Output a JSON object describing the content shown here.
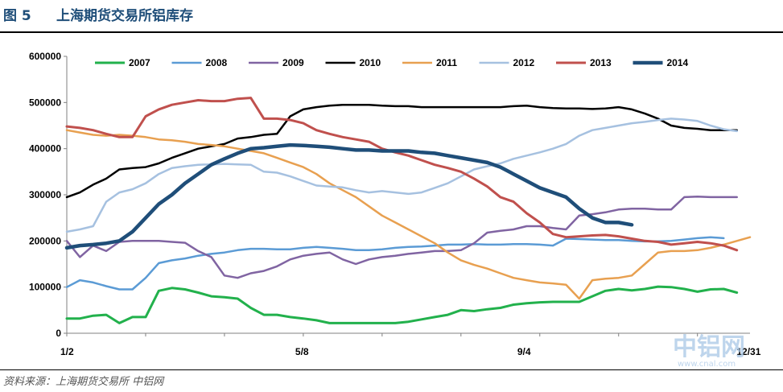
{
  "figure": {
    "label": "图 5",
    "title": "上海期货交易所铝库存",
    "source": "资料来源：上海期货交易所    中铝网"
  },
  "watermark": {
    "main": "中铝网",
    "sub": "www.cnal.com"
  },
  "chart_data": {
    "type": "line",
    "title": "",
    "xlabel": "",
    "ylabel": "",
    "ylim": [
      0,
      600000
    ],
    "yticks": [
      0,
      100000,
      200000,
      300000,
      400000,
      500000,
      600000
    ],
    "xticks": [
      {
        "label": "1/2",
        "week": 0
      },
      {
        "label": "5/8",
        "week": 17.9
      },
      {
        "label": "9/4",
        "week": 34.8
      },
      {
        "label": "12/31",
        "week": 51.9
      }
    ],
    "xlim": [
      0,
      52
    ],
    "grid": false,
    "legend_position": "top",
    "series": [
      {
        "name": "2007",
        "color": "#22b14c",
        "width": 3,
        "values": [
          32000,
          32000,
          38000,
          40000,
          22000,
          35000,
          35000,
          92000,
          98000,
          95000,
          88000,
          80000,
          78000,
          75000,
          55000,
          40000,
          40000,
          35000,
          32000,
          28000,
          22000,
          22000,
          22000,
          22000,
          22000,
          22000,
          25000,
          30000,
          35000,
          40000,
          50000,
          48000,
          52000,
          55000,
          62000,
          65000,
          67000,
          68000,
          68000,
          68000,
          80000,
          92000,
          96000,
          93000,
          96000,
          101000,
          100000,
          96000,
          90000,
          95000,
          96000,
          88000
        ]
      },
      {
        "name": "2008",
        "color": "#5b9bd5",
        "width": 2.5,
        "values": [
          100000,
          115000,
          110000,
          102000,
          95000,
          95000,
          120000,
          152000,
          158000,
          162000,
          168000,
          172000,
          175000,
          180000,
          183000,
          183000,
          182000,
          182000,
          185000,
          187000,
          185000,
          183000,
          180000,
          180000,
          182000,
          185000,
          187000,
          188000,
          190000,
          192000,
          192000,
          193000,
          192000,
          192000,
          193000,
          193000,
          192000,
          190000,
          205000,
          204000,
          203000,
          202000,
          202000,
          200000,
          199000,
          199000,
          200000,
          203000,
          206000,
          208000,
          206000
        ]
      },
      {
        "name": "2009",
        "color": "#8064a2",
        "width": 2.5,
        "values": [
          200000,
          165000,
          190000,
          178000,
          198000,
          200000,
          200000,
          200000,
          198000,
          196000,
          178000,
          165000,
          125000,
          120000,
          130000,
          135000,
          145000,
          160000,
          168000,
          172000,
          175000,
          160000,
          150000,
          160000,
          165000,
          168000,
          172000,
          175000,
          178000,
          178000,
          180000,
          195000,
          218000,
          222000,
          225000,
          232000,
          232000,
          228000,
          225000,
          255000,
          258000,
          262000,
          268000,
          270000,
          270000,
          268000,
          268000,
          295000,
          296000,
          295000,
          295000,
          295000
        ]
      },
      {
        "name": "2010",
        "color": "#000000",
        "width": 2.5,
        "values": [
          295000,
          305000,
          322000,
          335000,
          355000,
          358000,
          360000,
          368000,
          380000,
          390000,
          400000,
          405000,
          410000,
          422000,
          425000,
          430000,
          432000,
          470000,
          485000,
          490000,
          493000,
          495000,
          495000,
          495000,
          493000,
          492000,
          492000,
          490000,
          490000,
          490000,
          490000,
          490000,
          490000,
          490000,
          492000,
          493000,
          490000,
          488000,
          487000,
          487000,
          486000,
          487000,
          490000,
          485000,
          476000,
          465000,
          450000,
          445000,
          443000,
          440000,
          440000,
          440000
        ]
      },
      {
        "name": "2011",
        "color": "#e8a050",
        "width": 2.5,
        "values": [
          440000,
          435000,
          430000,
          428000,
          430000,
          428000,
          425000,
          420000,
          418000,
          415000,
          410000,
          408000,
          405000,
          400000,
          395000,
          390000,
          380000,
          370000,
          360000,
          345000,
          325000,
          310000,
          295000,
          275000,
          255000,
          240000,
          225000,
          210000,
          195000,
          175000,
          158000,
          148000,
          140000,
          130000,
          120000,
          115000,
          110000,
          108000,
          105000,
          75000,
          115000,
          118000,
          120000,
          125000,
          150000,
          175000,
          178000,
          178000,
          180000,
          185000,
          192000,
          200000,
          208000
        ]
      },
      {
        "name": "2012",
        "color": "#a6c1e0",
        "width": 2.5,
        "values": [
          220000,
          225000,
          232000,
          285000,
          305000,
          312000,
          325000,
          345000,
          358000,
          362000,
          365000,
          366000,
          367000,
          366000,
          365000,
          350000,
          348000,
          340000,
          330000,
          320000,
          318000,
          316000,
          310000,
          305000,
          308000,
          305000,
          302000,
          305000,
          315000,
          325000,
          340000,
          355000,
          362000,
          368000,
          378000,
          385000,
          392000,
          400000,
          410000,
          428000,
          440000,
          445000,
          450000,
          455000,
          458000,
          462000,
          465000,
          463000,
          460000,
          450000,
          442000,
          438000
        ]
      },
      {
        "name": "2013",
        "color": "#c0504d",
        "width": 3,
        "values": [
          448000,
          445000,
          440000,
          432000,
          425000,
          425000,
          470000,
          485000,
          495000,
          500000,
          505000,
          503000,
          503000,
          508000,
          510000,
          465000,
          465000,
          462000,
          455000,
          440000,
          432000,
          425000,
          420000,
          415000,
          400000,
          392000,
          385000,
          375000,
          365000,
          358000,
          350000,
          335000,
          318000,
          295000,
          285000,
          260000,
          240000,
          215000,
          208000,
          210000,
          212000,
          213000,
          210000,
          205000,
          200000,
          198000,
          192000,
          195000,
          198000,
          195000,
          190000,
          180000
        ]
      },
      {
        "name": "2014",
        "color": "#1f4e79",
        "width": 4.5,
        "values": [
          185000,
          190000,
          192000,
          195000,
          200000,
          220000,
          250000,
          280000,
          300000,
          325000,
          345000,
          365000,
          378000,
          390000,
          400000,
          402000,
          405000,
          408000,
          407000,
          405000,
          403000,
          400000,
          397000,
          397000,
          395000,
          395000,
          395000,
          392000,
          390000,
          385000,
          380000,
          375000,
          370000,
          360000,
          345000,
          330000,
          315000,
          305000,
          295000,
          270000,
          250000,
          240000,
          240000,
          235000
        ]
      }
    ]
  }
}
